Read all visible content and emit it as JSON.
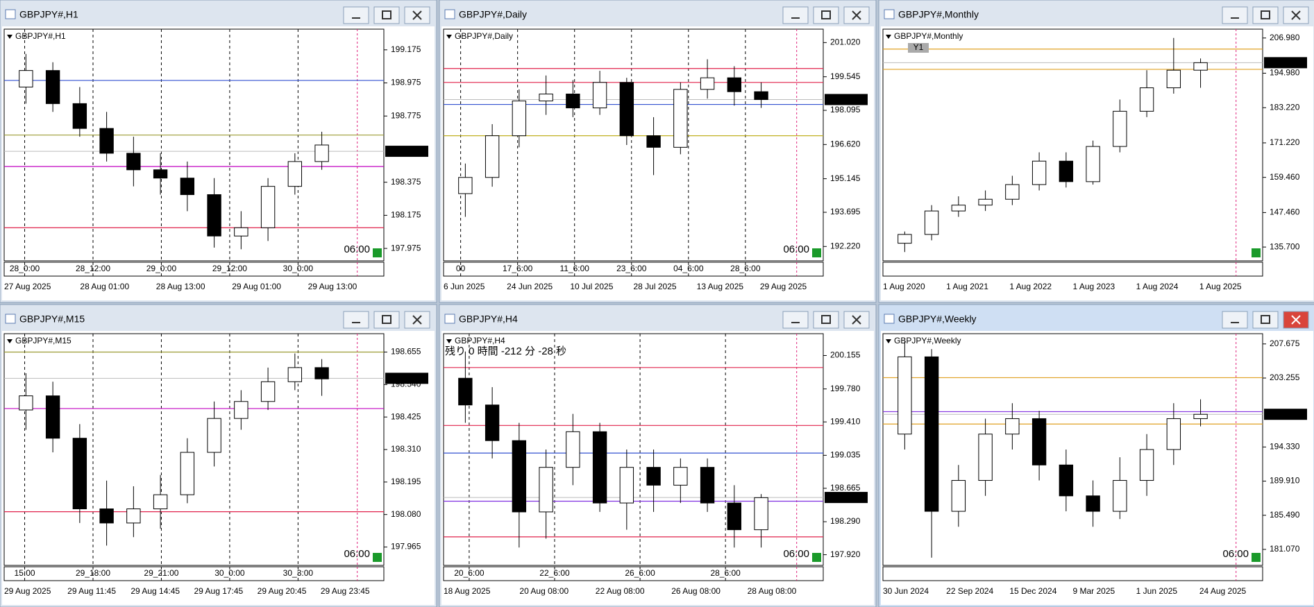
{
  "chart_data": [
    {
      "type": "candlestick",
      "title": "GBPJPY#,H1",
      "symbol_label": "GBPJPY#,H1",
      "ylim": [
        197.9,
        199.3
      ],
      "yticks": [
        199.175,
        198.975,
        198.775,
        198.375,
        198.175,
        197.975
      ],
      "current_price": 198.562,
      "countdown": "06:00",
      "open": [
        198.95,
        199.05,
        198.85,
        198.7,
        198.55,
        198.45,
        198.4,
        198.3,
        198.05,
        198.1,
        198.35,
        198.5
      ],
      "high": [
        199.15,
        199.1,
        198.95,
        198.8,
        198.65,
        198.55,
        198.5,
        198.4,
        198.2,
        198.4,
        198.55,
        198.68
      ],
      "low": [
        198.85,
        198.8,
        198.65,
        198.5,
        198.35,
        198.3,
        198.2,
        197.98,
        197.97,
        198.02,
        198.3,
        198.45
      ],
      "close": [
        199.05,
        198.85,
        198.7,
        198.55,
        198.45,
        198.4,
        198.3,
        198.05,
        198.1,
        198.35,
        198.5,
        198.6
      ],
      "hlines": [
        {
          "value": 198.99,
          "color": "#3050d0"
        },
        {
          "value": 198.47,
          "color": "#c000c0"
        },
        {
          "value": 198.1,
          "color": "#e0204a"
        },
        {
          "value": 198.66,
          "color": "#9a9a30"
        }
      ],
      "separator_labels": [
        "28_0:00",
        "28_12:00",
        "29_0:00",
        "29_12:00",
        "30_0:00"
      ],
      "time_labels": [
        "27 Aug 2025",
        "28 Aug 01:00",
        "28 Aug 13:00",
        "29 Aug 01:00",
        "29 Aug 13:00"
      ]
    },
    {
      "type": "candlestick",
      "title": "GBPJPY#,Daily",
      "symbol_label": "GBPJPY#,Daily",
      "ylim": [
        191.6,
        201.6
      ],
      "yticks": [
        {
          "value": 201.02,
          "label": "201.020"
        },
        199.545,
        198.095,
        {
          "value": 196.62,
          "label": "196.620"
        },
        195.145,
        193.695,
        {
          "value": 192.22,
          "label": "192.220"
        }
      ],
      "current_price": 198.562,
      "countdown": "06:00",
      "open": [
        194.5,
        195.2,
        197.0,
        198.5,
        198.8,
        198.2,
        199.3,
        197.0,
        196.5,
        199.0,
        199.5,
        198.9
      ],
      "high": [
        195.8,
        197.5,
        199.0,
        199.6,
        199.4,
        199.8,
        199.5,
        197.8,
        199.3,
        200.3,
        200.0,
        199.3
      ],
      "low": [
        193.5,
        194.8,
        196.5,
        197.9,
        197.8,
        197.9,
        196.6,
        195.3,
        196.2,
        198.6,
        198.3,
        198.2
      ],
      "close": [
        195.2,
        197.0,
        198.5,
        198.8,
        198.2,
        199.3,
        197.0,
        196.5,
        199.0,
        199.5,
        198.9,
        198.56
      ],
      "hlines": [
        {
          "value": 198.35,
          "color": "#3050d0"
        },
        {
          "value": 197.0,
          "color": "#c0b020"
        },
        {
          "value": 199.9,
          "color": "#e0204a"
        },
        {
          "value": 199.3,
          "color": "#e0204a"
        }
      ],
      "separator_labels": [
        "00",
        "17_6:00",
        "11_6:00",
        "23_6:00",
        "04_6:00",
        "28_6:00"
      ],
      "time_labels": [
        "6 Jun 2025",
        "24 Jun 2025",
        "10 Jul 2025",
        "28 Jul 2025",
        "13 Aug 2025",
        "29 Aug 2025"
      ]
    },
    {
      "type": "candlestick",
      "title": "GBPJPY#,Monthly",
      "symbol_label": "GBPJPY#,Monthly",
      "period_button": "Y1",
      "ylim": [
        131,
        210
      ],
      "yticks": [
        {
          "value": 206.98,
          "label": "206.980"
        },
        {
          "value": 194.98,
          "label": "194.980"
        },
        {
          "value": 183.22,
          "label": "183.220"
        },
        {
          "value": 171.22,
          "label": "171.220"
        },
        {
          "value": 159.46,
          "label": "159.460"
        },
        {
          "value": 147.46,
          "label": "147.460"
        },
        {
          "value": 135.7,
          "label": "135.700"
        }
      ],
      "current_price": 198.562,
      "open": [
        137,
        140,
        148,
        150,
        152,
        157,
        165,
        158,
        170,
        182,
        190,
        196
      ],
      "high": [
        141,
        150,
        153,
        155,
        160,
        168,
        168,
        172,
        186,
        196,
        207,
        200
      ],
      "low": [
        134,
        138,
        146,
        148,
        150,
        155,
        156,
        157,
        168,
        180,
        188,
        190
      ],
      "close": [
        140,
        148,
        150,
        152,
        157,
        165,
        158,
        170,
        182,
        190,
        196,
        198.56
      ],
      "hlines": [
        {
          "value": 196.3,
          "color": "#e0a020"
        },
        {
          "value": 203.2,
          "color": "#e0a020"
        }
      ],
      "separator_labels": [],
      "time_labels": [
        "1 Aug 2020",
        "1 Aug 2021",
        "1 Aug 2022",
        "1 Aug 2023",
        "1 Aug 2024",
        "1 Aug 2025"
      ]
    },
    {
      "type": "candlestick",
      "title": "GBPJPY#,M15",
      "symbol_label": "GBPJPY#,M15",
      "ylim": [
        197.9,
        198.72
      ],
      "yticks": [
        198.655,
        {
          "value": 198.54,
          "label": "198.540"
        },
        198.425,
        {
          "value": 198.31,
          "label": "198.310"
        },
        198.195,
        {
          "value": 198.08,
          "label": "198.080"
        },
        197.965
      ],
      "current_price": 198.562,
      "countdown": "06:00",
      "open": [
        198.45,
        198.5,
        198.35,
        198.1,
        198.05,
        198.1,
        198.15,
        198.3,
        198.42,
        198.48,
        198.55,
        198.6
      ],
      "high": [
        198.58,
        198.55,
        198.4,
        198.2,
        198.18,
        198.22,
        198.35,
        198.48,
        198.52,
        198.6,
        198.65,
        198.63
      ],
      "low": [
        198.38,
        198.3,
        198.05,
        197.97,
        198.0,
        198.03,
        198.12,
        198.25,
        198.38,
        198.45,
        198.52,
        198.5
      ],
      "close": [
        198.5,
        198.35,
        198.1,
        198.05,
        198.1,
        198.15,
        198.3,
        198.42,
        198.48,
        198.55,
        198.6,
        198.56
      ],
      "hlines": [
        {
          "value": 198.455,
          "color": "#c000c0"
        },
        {
          "value": 198.09,
          "color": "#e0204a"
        },
        {
          "value": 198.655,
          "color": "#9a9a30"
        }
      ],
      "separator_labels": [
        "15:00",
        "29_18:00",
        "29_21:00",
        "30_0:00",
        "30_3:00"
      ],
      "time_labels": [
        "29 Aug 2025",
        "29 Aug 11:45",
        "29 Aug 14:45",
        "29 Aug 17:45",
        "29 Aug 20:45",
        "29 Aug 23:45"
      ]
    },
    {
      "type": "candlestick",
      "title": "GBPJPY#,H4",
      "symbol_label": "GBPJPY#,H4",
      "timer_text": "残り 0 時間 -212 分 -28 秒",
      "ylim": [
        197.8,
        200.4
      ],
      "yticks": [
        200.155,
        {
          "value": 199.78,
          "label": "199.780"
        },
        {
          "value": 199.41,
          "label": "199.410"
        },
        199.035,
        198.665,
        {
          "value": 198.29,
          "label": "198.290"
        },
        {
          "value": 197.92,
          "label": "197.920"
        }
      ],
      "current_price": 198.562,
      "countdown": "06:00",
      "open": [
        199.9,
        199.6,
        199.2,
        198.4,
        198.9,
        199.3,
        198.5,
        198.9,
        198.7,
        198.9,
        198.5,
        198.2
      ],
      "high": [
        200.2,
        199.8,
        199.4,
        199.1,
        199.5,
        199.4,
        199.1,
        199.1,
        199.0,
        199.0,
        198.7,
        198.6
      ],
      "low": [
        199.4,
        199.0,
        198.0,
        198.1,
        198.7,
        198.4,
        198.2,
        198.4,
        198.5,
        198.4,
        198.0,
        198.0
      ],
      "close": [
        199.6,
        199.2,
        198.4,
        198.9,
        199.3,
        198.5,
        198.9,
        198.7,
        198.9,
        198.5,
        198.2,
        198.56
      ],
      "hlines": [
        {
          "value": 198.52,
          "color": "#8030e0"
        },
        {
          "value": 199.06,
          "color": "#3050d0"
        },
        {
          "value": 199.37,
          "color": "#e0204a"
        },
        {
          "value": 200.02,
          "color": "#e0204a"
        },
        {
          "value": 198.12,
          "color": "#e0204a"
        }
      ],
      "separator_labels": [
        "20_6:00",
        "22_6:00",
        "26_6:00",
        "28_6:00"
      ],
      "time_labels": [
        "18 Aug 2025",
        "20 Aug 08:00",
        "22 Aug 08:00",
        "26 Aug 08:00",
        "28 Aug 08:00"
      ]
    },
    {
      "type": "candlestick",
      "title": "GBPJPY#,Weekly",
      "symbol_label": "GBPJPY#,Weekly",
      "active": true,
      "ylim": [
        179,
        209
      ],
      "yticks": [
        207.675,
        203.255,
        {
          "value": 194.33,
          "label": "194.330"
        },
        {
          "value": 189.91,
          "label": "189.910"
        },
        {
          "value": 185.49,
          "label": "185.490"
        },
        {
          "value": 181.07,
          "label": "181.070"
        }
      ],
      "current_price": 198.562,
      "countdown": "06:00",
      "open": [
        196,
        206,
        186,
        190,
        196,
        198,
        192,
        188,
        186,
        190,
        194,
        198
      ],
      "high": [
        208,
        207,
        192,
        198,
        200,
        199,
        194,
        190,
        193,
        196,
        200,
        200.5
      ],
      "low": [
        194,
        180,
        184,
        188,
        194,
        190,
        186,
        184,
        185,
        188,
        192,
        197
      ],
      "close": [
        206,
        186,
        190,
        196,
        198,
        192,
        188,
        186,
        190,
        194,
        198,
        198.56
      ],
      "hlines": [
        {
          "value": 198.9,
          "color": "#8030e0"
        },
        {
          "value": 203.3,
          "color": "#e0a020"
        },
        {
          "value": 197.3,
          "color": "#e0a020"
        }
      ],
      "separator_labels": [],
      "time_labels": [
        "30 Jun 2024",
        "22 Sep 2024",
        "15 Dec 2024",
        "9 Mar 2025",
        "1 Jun 2025",
        "24 Aug 2025"
      ]
    }
  ]
}
